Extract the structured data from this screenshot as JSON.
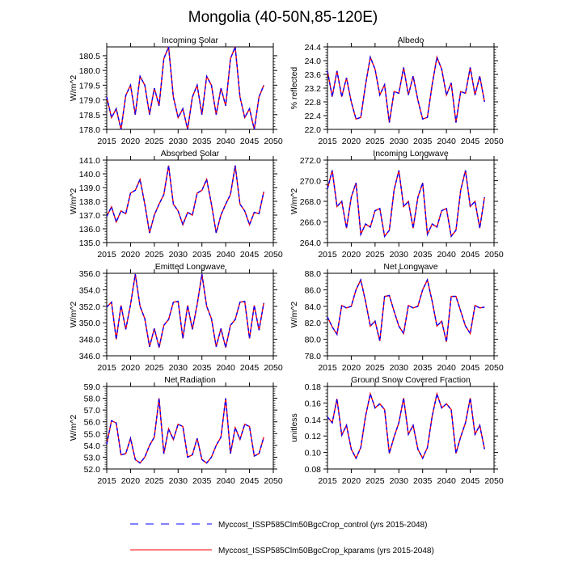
{
  "chart_data": {
    "type": "line",
    "title": "Mongolia (40-50N,85-120E)",
    "legend_position": "bottom-center",
    "legend": [
      {
        "label": "Myccost_ISSP585Clm50BgcCrop_control (yrs 2015-2048)",
        "color": "#0000ff",
        "style": "dashed"
      },
      {
        "label": "Myccost_ISSP585Clm50BgcCrop_kparams (yrs 2015-2048)",
        "color": "#ff0000",
        "style": "solid"
      }
    ],
    "x": [
      2015,
      2016,
      2017,
      2018,
      2019,
      2020,
      2021,
      2022,
      2023,
      2024,
      2025,
      2026,
      2027,
      2028,
      2029,
      2030,
      2031,
      2032,
      2033,
      2034,
      2035,
      2036,
      2037,
      2038,
      2039,
      2040,
      2041,
      2042,
      2043,
      2044,
      2045,
      2046,
      2047,
      2048
    ],
    "xlim": [
      2015,
      2050
    ],
    "xticks": [
      2015,
      2020,
      2025,
      2030,
      2035,
      2040,
      2045,
      2050
    ],
    "panels": [
      {
        "title": "Incoming Solar",
        "ylabel": "W/m^2",
        "ylim": [
          178.0,
          180.8
        ],
        "yticks": [
          178.0,
          178.5,
          179.0,
          179.5,
          180.0,
          180.5
        ],
        "tick_decimals": 1,
        "values": [
          179.1,
          178.4,
          178.7,
          178.0,
          179.15,
          179.5,
          178.5,
          179.8,
          179.5,
          178.5,
          179.4,
          178.8,
          180.4,
          180.8,
          179.1,
          178.4,
          178.7,
          178.0,
          179.1,
          179.5,
          178.5,
          179.8,
          179.5,
          178.5,
          179.4,
          178.8,
          180.4,
          180.8,
          179.1,
          178.4,
          178.7,
          178.0,
          179.1,
          179.5
        ]
      },
      {
        "title": "Albedo",
        "ylabel": "% reflected",
        "ylim": [
          22.0,
          24.4
        ],
        "yticks": [
          22.0,
          22.4,
          22.8,
          23.2,
          23.6,
          24.0,
          24.4
        ],
        "tick_decimals": 1,
        "values": [
          23.7,
          22.95,
          23.7,
          22.95,
          23.5,
          22.8,
          22.3,
          22.35,
          23.3,
          24.1,
          23.75,
          23.0,
          23.3,
          22.2,
          23.1,
          23.05,
          23.8,
          23.0,
          23.55,
          22.85,
          22.3,
          22.35,
          23.3,
          24.1,
          23.75,
          23.0,
          23.35,
          22.2,
          23.1,
          23.05,
          23.8,
          23.0,
          23.55,
          22.8
        ]
      },
      {
        "title": "Absorbed Solar",
        "ylabel": "W/m^2",
        "ylim": [
          135.0,
          141.0
        ],
        "yticks": [
          135.0,
          136.0,
          137.0,
          138.0,
          139.0,
          140.0,
          141.0
        ],
        "tick_decimals": 1,
        "values": [
          136.9,
          137.6,
          136.5,
          137.3,
          137.1,
          138.6,
          138.8,
          139.6,
          137.8,
          135.7,
          137.0,
          137.8,
          138.5,
          140.6,
          137.8,
          137.3,
          136.3,
          137.2,
          137.0,
          138.6,
          138.8,
          139.6,
          137.8,
          135.7,
          137.0,
          137.8,
          138.5,
          140.6,
          137.8,
          137.3,
          136.3,
          137.2,
          137.1,
          138.7
        ]
      },
      {
        "title": "Incoming Longwave",
        "ylabel": "W/m^2",
        "ylim": [
          264.0,
          272.0
        ],
        "yticks": [
          264.0,
          266.0,
          268.0,
          270.0,
          272.0
        ],
        "tick_decimals": 1,
        "values": [
          269.2,
          271.0,
          267.5,
          268.0,
          265.4,
          268.4,
          269.8,
          264.8,
          265.8,
          265.5,
          267.1,
          267.3,
          264.6,
          265.2,
          269.1,
          271.0,
          267.5,
          268.0,
          265.4,
          268.4,
          269.8,
          264.8,
          265.8,
          265.5,
          267.1,
          267.3,
          264.6,
          265.2,
          269.1,
          271.0,
          267.5,
          268.0,
          265.4,
          268.4
        ]
      },
      {
        "title": "Emitted Longwave",
        "ylabel": "W/m^2",
        "ylim": [
          346.0,
          356.0
        ],
        "yticks": [
          346.0,
          348.0,
          350.0,
          352.0,
          354.0,
          356.0
        ],
        "tick_decimals": 1,
        "values": [
          351.9,
          352.5,
          348.0,
          352.1,
          349.2,
          352.2,
          355.9,
          352.0,
          350.5,
          347.1,
          349.3,
          347.0,
          349.7,
          350.4,
          352.5,
          352.6,
          348.1,
          352.1,
          349.2,
          352.2,
          355.9,
          352.0,
          350.5,
          347.1,
          349.3,
          347.0,
          349.7,
          350.4,
          352.5,
          352.6,
          348.1,
          352.1,
          349.1,
          352.4
        ]
      },
      {
        "title": "Net Longwave",
        "ylabel": "W/m^2",
        "ylim": [
          78.0,
          88.0
        ],
        "yticks": [
          78.0,
          80.0,
          82.0,
          84.0,
          86.0,
          88.0
        ],
        "tick_decimals": 1,
        "values": [
          82.7,
          81.5,
          80.6,
          84.1,
          83.8,
          84.0,
          86.0,
          87.2,
          84.6,
          81.6,
          82.2,
          79.8,
          85.2,
          85.3,
          83.4,
          81.6,
          80.7,
          84.1,
          83.8,
          84.0,
          86.0,
          87.2,
          84.6,
          81.6,
          82.2,
          79.7,
          85.2,
          85.2,
          83.4,
          81.6,
          80.7,
          84.1,
          83.8,
          83.9
        ]
      },
      {
        "title": "Net Radiation",
        "ylabel": "W/m^2",
        "ylim": [
          52.0,
          59.0
        ],
        "yticks": [
          52.0,
          53.0,
          54.0,
          55.0,
          56.0,
          57.0,
          58.0,
          59.0
        ],
        "tick_decimals": 1,
        "values": [
          54.1,
          56.1,
          55.9,
          53.2,
          53.3,
          54.6,
          52.8,
          52.5,
          53.0,
          54.0,
          54.7,
          58.0,
          53.3,
          55.4,
          54.5,
          55.8,
          55.6,
          53.0,
          53.2,
          54.6,
          52.8,
          52.5,
          53.0,
          54.0,
          54.7,
          58.0,
          53.3,
          55.5,
          54.5,
          55.8,
          55.6,
          53.1,
          53.3,
          54.7
        ]
      },
      {
        "title": "Ground Snow Covered Fraction",
        "ylabel": "unitless",
        "ylim": [
          0.08,
          0.18
        ],
        "yticks": [
          0.08,
          0.1,
          0.12,
          0.14,
          0.16,
          0.18
        ],
        "tick_decimals": 2,
        "values": [
          0.143,
          0.136,
          0.165,
          0.121,
          0.133,
          0.104,
          0.093,
          0.106,
          0.144,
          0.171,
          0.154,
          0.159,
          0.152,
          0.099,
          0.119,
          0.136,
          0.166,
          0.122,
          0.133,
          0.104,
          0.093,
          0.106,
          0.144,
          0.171,
          0.154,
          0.159,
          0.152,
          0.099,
          0.119,
          0.136,
          0.166,
          0.122,
          0.133,
          0.104
        ]
      }
    ]
  }
}
